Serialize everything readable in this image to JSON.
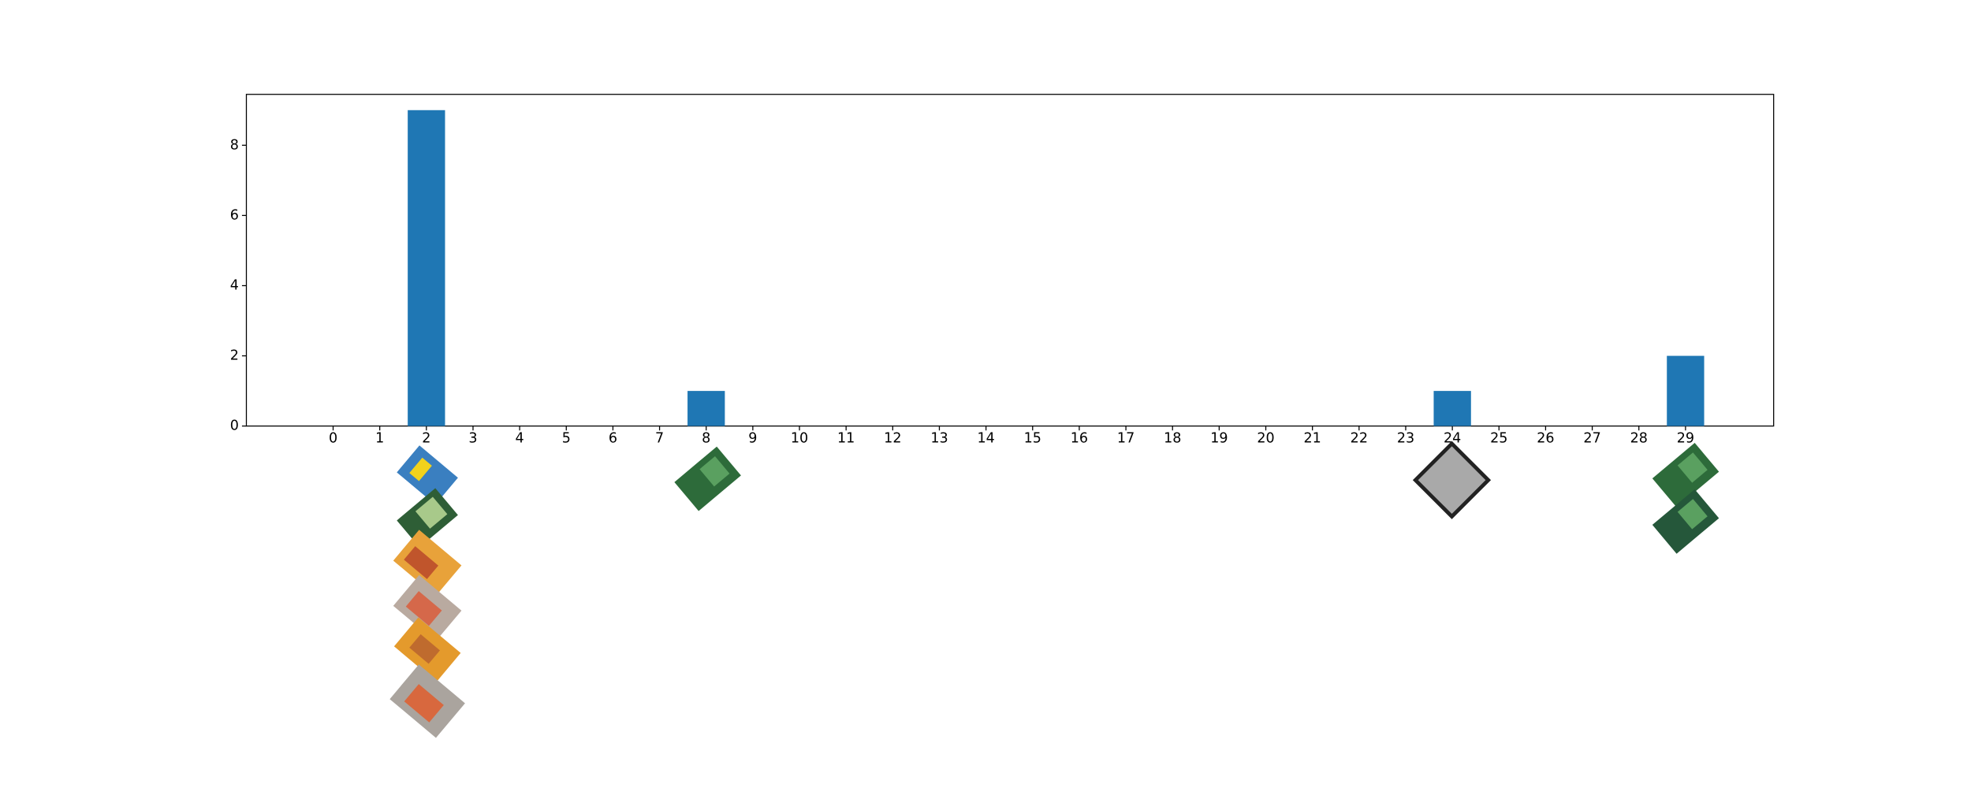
{
  "chart_data": {
    "type": "bar",
    "x": [
      0,
      1,
      2,
      3,
      4,
      5,
      6,
      7,
      8,
      9,
      10,
      11,
      12,
      13,
      14,
      15,
      16,
      17,
      18,
      19,
      20,
      21,
      22,
      23,
      24,
      25,
      26,
      27,
      28,
      29
    ],
    "values": [
      0,
      0,
      9,
      0,
      0,
      0,
      0,
      0,
      1,
      0,
      0,
      0,
      0,
      0,
      0,
      0,
      0,
      0,
      0,
      0,
      0,
      0,
      0,
      0,
      1,
      0,
      0,
      0,
      0,
      2
    ],
    "color": "#1f77b4",
    "xlim": [
      -1.86,
      30.89
    ],
    "xticks": [
      0,
      1,
      2,
      3,
      4,
      5,
      6,
      7,
      8,
      9,
      10,
      11,
      12,
      13,
      14,
      15,
      16,
      17,
      18,
      19,
      20,
      21,
      22,
      23,
      24,
      25,
      26,
      27,
      28,
      29
    ],
    "ylim": [
      0,
      9.45
    ],
    "yticks": [
      0,
      2,
      4,
      6,
      8
    ],
    "grid": false
  }
}
